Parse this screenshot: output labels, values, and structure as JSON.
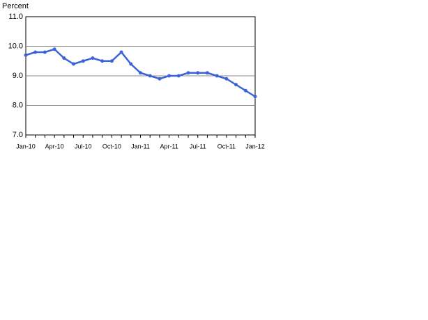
{
  "chart_data": {
    "type": "line",
    "y_label": "Percent",
    "categories": [
      "Jan-10",
      null,
      null,
      "Apr-10",
      null,
      null,
      "Jul-10",
      null,
      null,
      "Oct-10",
      null,
      null,
      "Jan-11",
      null,
      null,
      "Apr-11",
      null,
      null,
      "Jul-11",
      null,
      null,
      "Oct-11",
      null,
      null,
      "Jan-12"
    ],
    "values": [
      9.7,
      9.8,
      9.8,
      9.9,
      9.6,
      9.4,
      9.5,
      9.6,
      9.5,
      9.5,
      9.8,
      9.4,
      9.1,
      9.0,
      8.9,
      9.0,
      9.0,
      9.1,
      9.1,
      9.1,
      9.0,
      8.9,
      8.7,
      8.5,
      8.3
    ],
    "color": "#3b62d9",
    "ylim": [
      7,
      11
    ],
    "yticks": [
      {
        "value": 7,
        "label": "7.0"
      },
      {
        "value": 8,
        "label": "8.0"
      },
      {
        "value": 9,
        "label": "9.0"
      },
      {
        "value": 10,
        "label": "10.0"
      },
      {
        "value": 11,
        "label": "11.0"
      }
    ],
    "grid": true
  }
}
